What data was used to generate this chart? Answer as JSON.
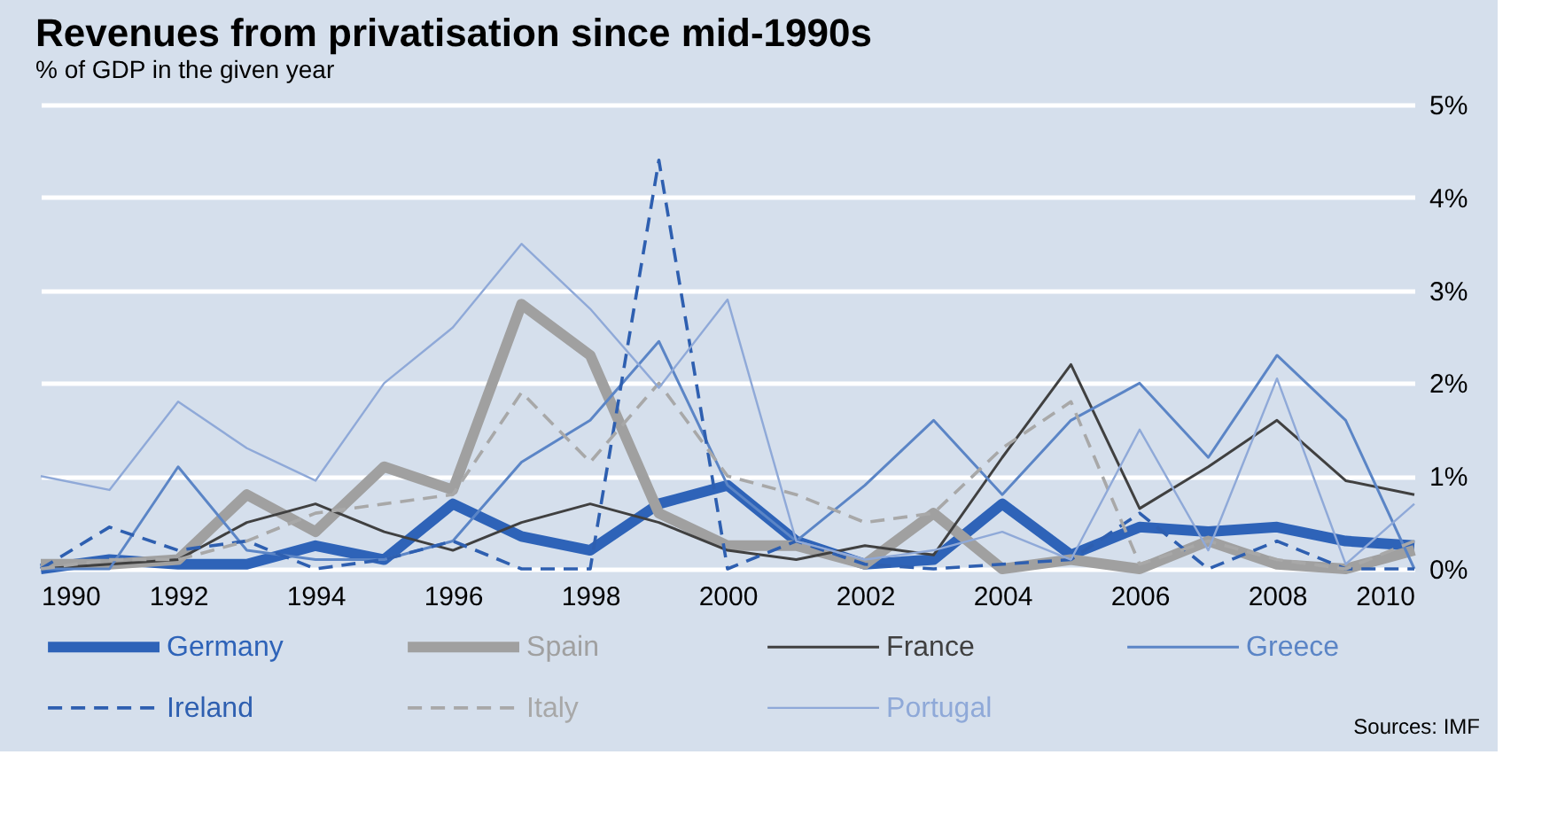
{
  "chart_data": {
    "type": "line",
    "title": "Revenues from privatisation since mid-1990s",
    "subtitle": "% of GDP in the given year",
    "x": [
      1990,
      1991,
      1992,
      1993,
      1994,
      1995,
      1996,
      1997,
      1998,
      1999,
      2000,
      2001,
      2002,
      2003,
      2004,
      2005,
      2006,
      2007,
      2008,
      2009,
      2010
    ],
    "series": [
      {
        "name": "Germany",
        "color": "#2e63b8",
        "line_style": "solid",
        "values": [
          0.0,
          0.1,
          0.05,
          0.05,
          0.25,
          0.1,
          0.7,
          0.35,
          0.2,
          0.7,
          0.9,
          0.3,
          0.05,
          0.1,
          0.7,
          0.15,
          0.45,
          0.4,
          0.45,
          0.3,
          0.25
        ]
      },
      {
        "name": "Spain",
        "color": "#a0a0a0",
        "line_style": "solid",
        "values": [
          0.05,
          0.05,
          0.1,
          0.8,
          0.4,
          1.1,
          0.85,
          2.85,
          2.3,
          0.6,
          0.25,
          0.25,
          0.05,
          0.6,
          0.0,
          0.1,
          0.0,
          0.3,
          0.05,
          0.0,
          0.2
        ]
      },
      {
        "name": "France",
        "color": "#404040",
        "line_style": "solid",
        "values": [
          0.0,
          0.05,
          0.1,
          0.5,
          0.7,
          0.4,
          0.2,
          0.5,
          0.7,
          0.5,
          0.2,
          0.1,
          0.25,
          0.15,
          1.2,
          2.2,
          0.65,
          1.1,
          1.6,
          0.95,
          0.8
        ]
      },
      {
        "name": "Greece",
        "color": "#5b85c6",
        "line_style": "solid",
        "values": [
          0.0,
          0.0,
          1.1,
          0.2,
          0.1,
          0.1,
          0.3,
          1.15,
          1.6,
          2.45,
          0.9,
          0.3,
          0.9,
          1.6,
          0.8,
          1.6,
          2.0,
          1.2,
          2.3,
          1.6,
          0.0
        ]
      },
      {
        "name": "Ireland",
        "color": "#2e5fb0",
        "line_style": "dashed",
        "values": [
          0.0,
          0.45,
          0.2,
          0.3,
          0.0,
          0.1,
          0.3,
          0.0,
          0.0,
          4.4,
          0.0,
          0.3,
          0.05,
          0.0,
          0.05,
          0.1,
          0.6,
          0.0,
          0.3,
          0.0,
          0.0
        ]
      },
      {
        "name": "Italy",
        "color": "#a8a8a8",
        "line_style": "dashed",
        "values": [
          0.0,
          0.1,
          0.1,
          0.3,
          0.6,
          0.7,
          0.8,
          1.9,
          1.15,
          2.0,
          1.0,
          0.8,
          0.5,
          0.6,
          1.3,
          1.8,
          0.05,
          0.3,
          0.1,
          0.0,
          0.3
        ]
      },
      {
        "name": "Portugal",
        "color": "#8fa9d8",
        "line_style": "solid",
        "values": [
          1.0,
          0.85,
          1.8,
          1.3,
          0.95,
          2.0,
          2.6,
          3.5,
          2.8,
          1.95,
          2.9,
          0.3,
          0.1,
          0.2,
          0.4,
          0.1,
          1.5,
          0.2,
          2.05,
          0.05,
          0.7
        ]
      }
    ],
    "xlim": [
      1990,
      2010
    ],
    "xticks": [
      1990,
      1992,
      1994,
      1996,
      1998,
      2000,
      2002,
      2004,
      2006,
      2008,
      2010
    ],
    "ylim": [
      0,
      5
    ],
    "yticks": [
      {
        "value": 0,
        "label": "0%"
      },
      {
        "value": 1,
        "label": "1%"
      },
      {
        "value": 2,
        "label": "2%"
      },
      {
        "value": 3,
        "label": "3%"
      },
      {
        "value": 4,
        "label": "4%"
      },
      {
        "value": 5,
        "label": "5%"
      }
    ],
    "grid": "y",
    "legend": "bottom",
    "annotations": [
      "Sources: IMF"
    ]
  }
}
